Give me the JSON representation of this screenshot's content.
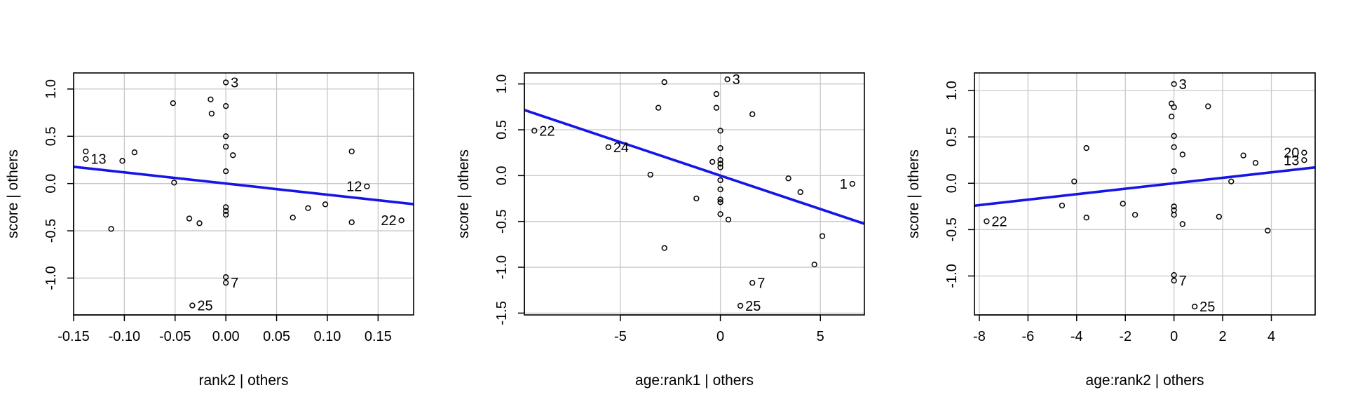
{
  "chart_data": [
    {
      "type": "scatter",
      "xlabel": "rank2 | others",
      "ylabel": "score  | others",
      "xlim": [
        -0.15,
        0.185
      ],
      "ylim": [
        -1.39,
        1.17
      ],
      "xticks": [
        "-0.15",
        "-0.10",
        "-0.05",
        "0.00",
        "0.05",
        "0.10",
        "0.15"
      ],
      "xtick_values": [
        -0.15,
        -0.1,
        -0.05,
        0.0,
        0.05,
        0.1,
        0.15
      ],
      "yticks": [
        "-1.0",
        "-0.5",
        "0.0",
        "0.5",
        "1.0"
      ],
      "ytick_values": [
        -1.0,
        -0.5,
        0.0,
        0.5,
        1.0
      ],
      "grid": true,
      "fit_line": {
        "slope": -1.18,
        "intercept": 0.0,
        "color": "#1515e6"
      },
      "points": [
        {
          "x": -0.138,
          "y": 0.34
        },
        {
          "x": -0.138,
          "y": 0.26,
          "label": "13"
        },
        {
          "x": -0.113,
          "y": -0.48
        },
        {
          "x": -0.102,
          "y": 0.24
        },
        {
          "x": -0.09,
          "y": 0.33
        },
        {
          "x": -0.052,
          "y": 0.85
        },
        {
          "x": -0.051,
          "y": 0.01
        },
        {
          "x": -0.036,
          "y": -0.37
        },
        {
          "x": -0.033,
          "y": -1.29,
          "label": "25"
        },
        {
          "x": -0.026,
          "y": -0.42
        },
        {
          "x": -0.015,
          "y": 0.89
        },
        {
          "x": -0.014,
          "y": 0.74
        },
        {
          "x": 0.0,
          "y": 1.07,
          "label": "3"
        },
        {
          "x": 0.0,
          "y": 0.82
        },
        {
          "x": 0.0,
          "y": 0.5
        },
        {
          "x": 0.0,
          "y": 0.39
        },
        {
          "x": 0.0,
          "y": 0.13
        },
        {
          "x": 0.0,
          "y": -0.25
        },
        {
          "x": 0.0,
          "y": -0.29
        },
        {
          "x": 0.0,
          "y": -0.33
        },
        {
          "x": 0.0,
          "y": -0.99
        },
        {
          "x": 0.0,
          "y": -1.05,
          "label": "7"
        },
        {
          "x": 0.007,
          "y": 0.3
        },
        {
          "x": 0.066,
          "y": -0.36
        },
        {
          "x": 0.081,
          "y": -0.26
        },
        {
          "x": 0.098,
          "y": -0.22
        },
        {
          "x": 0.124,
          "y": 0.34
        },
        {
          "x": 0.124,
          "y": -0.41
        },
        {
          "x": 0.139,
          "y": -0.03,
          "label": "12"
        },
        {
          "x": 0.173,
          "y": -0.39,
          "label": "22"
        }
      ]
    },
    {
      "type": "scatter",
      "xlabel": "age:rank1 | others",
      "ylabel": "score  | others",
      "xlim": [
        -9.8,
        7.2
      ],
      "ylim": [
        -1.52,
        1.12
      ],
      "xticks": [
        "-5",
        "0",
        "5"
      ],
      "xtick_values": [
        -5,
        0,
        5
      ],
      "yticks": [
        "-1.5",
        "-1.0",
        "-0.5",
        "0.0",
        "0.5",
        "1.0"
      ],
      "ytick_values": [
        -1.5,
        -1.0,
        -0.5,
        0.0,
        0.5,
        1.0
      ],
      "grid": true,
      "fit_line": {
        "slope": -0.073,
        "intercept": 0.0,
        "color": "#1515e6"
      },
      "points": [
        {
          "x": -9.3,
          "y": 0.49,
          "label": "22"
        },
        {
          "x": -5.6,
          "y": 0.31,
          "label": "24"
        },
        {
          "x": -3.5,
          "y": 0.01
        },
        {
          "x": -3.1,
          "y": 0.74
        },
        {
          "x": -2.8,
          "y": 1.02
        },
        {
          "x": -2.8,
          "y": -0.79
        },
        {
          "x": -1.2,
          "y": -0.25
        },
        {
          "x": -0.4,
          "y": 0.15
        },
        {
          "x": -0.2,
          "y": 0.89
        },
        {
          "x": -0.2,
          "y": 0.74
        },
        {
          "x": 0.0,
          "y": 0.49
        },
        {
          "x": 0.0,
          "y": 0.3
        },
        {
          "x": 0.0,
          "y": 0.17
        },
        {
          "x": 0.0,
          "y": 0.13
        },
        {
          "x": 0.0,
          "y": 0.09
        },
        {
          "x": 0.0,
          "y": -0.05
        },
        {
          "x": 0.0,
          "y": -0.15
        },
        {
          "x": 0.0,
          "y": -0.26
        },
        {
          "x": 0.0,
          "y": -0.29
        },
        {
          "x": 0.0,
          "y": -0.42
        },
        {
          "x": 0.35,
          "y": 1.05,
          "label": "3"
        },
        {
          "x": 0.4,
          "y": -0.48
        },
        {
          "x": 1.0,
          "y": -1.42,
          "label": "25"
        },
        {
          "x": 1.6,
          "y": 0.67
        },
        {
          "x": 1.6,
          "y": -1.17,
          "label": "7"
        },
        {
          "x": 3.4,
          "y": -0.03
        },
        {
          "x": 4.0,
          "y": -0.18
        },
        {
          "x": 4.7,
          "y": -0.97
        },
        {
          "x": 5.1,
          "y": -0.66
        },
        {
          "x": 6.6,
          "y": -0.09,
          "label": "1"
        }
      ]
    },
    {
      "type": "scatter",
      "xlabel": "age:rank2 | others",
      "ylabel": "score  | others",
      "xlim": [
        -8.2,
        5.8
      ],
      "ylim": [
        -1.42,
        1.19
      ],
      "xticks": [
        "-8",
        "-6",
        "-4",
        "-2",
        "0",
        "2",
        "4"
      ],
      "xtick_values": [
        -8,
        -6,
        -4,
        -2,
        0,
        2,
        4
      ],
      "yticks": [
        "-1.0",
        "-0.5",
        "0.0",
        "0.5",
        "1.0"
      ],
      "ytick_values": [
        -1.0,
        -0.5,
        0.0,
        0.5,
        1.0
      ],
      "grid": true,
      "fit_line": {
        "slope": 0.0295,
        "intercept": 0.0,
        "color": "#1515e6"
      },
      "points": [
        {
          "x": -7.7,
          "y": -0.41,
          "label": "22"
        },
        {
          "x": -4.6,
          "y": -0.24
        },
        {
          "x": -4.1,
          "y": 0.02
        },
        {
          "x": -3.6,
          "y": 0.38
        },
        {
          "x": -3.6,
          "y": -0.37
        },
        {
          "x": -2.1,
          "y": -0.22
        },
        {
          "x": -1.6,
          "y": -0.34
        },
        {
          "x": -0.1,
          "y": 0.86
        },
        {
          "x": -0.1,
          "y": 0.72
        },
        {
          "x": 0.0,
          "y": 1.07,
          "label": "3"
        },
        {
          "x": 0.0,
          "y": 0.82
        },
        {
          "x": 0.0,
          "y": 0.51
        },
        {
          "x": 0.0,
          "y": 0.39
        },
        {
          "x": 0.0,
          "y": 0.13
        },
        {
          "x": 0.0,
          "y": -0.25
        },
        {
          "x": 0.0,
          "y": -0.29
        },
        {
          "x": 0.0,
          "y": -0.34
        },
        {
          "x": 0.0,
          "y": -0.99
        },
        {
          "x": 0.0,
          "y": -1.05,
          "label": "7"
        },
        {
          "x": 0.35,
          "y": 0.31
        },
        {
          "x": 0.35,
          "y": -0.44
        },
        {
          "x": 0.85,
          "y": -1.33,
          "label": "25"
        },
        {
          "x": 1.4,
          "y": 0.83
        },
        {
          "x": 1.85,
          "y": -0.36
        },
        {
          "x": 2.35,
          "y": 0.02
        },
        {
          "x": 2.85,
          "y": 0.3
        },
        {
          "x": 3.35,
          "y": 0.22
        },
        {
          "x": 3.85,
          "y": -0.51
        },
        {
          "x": 5.35,
          "y": 0.33,
          "label": "20"
        },
        {
          "x": 5.35,
          "y": 0.25,
          "label": "13"
        }
      ]
    }
  ]
}
